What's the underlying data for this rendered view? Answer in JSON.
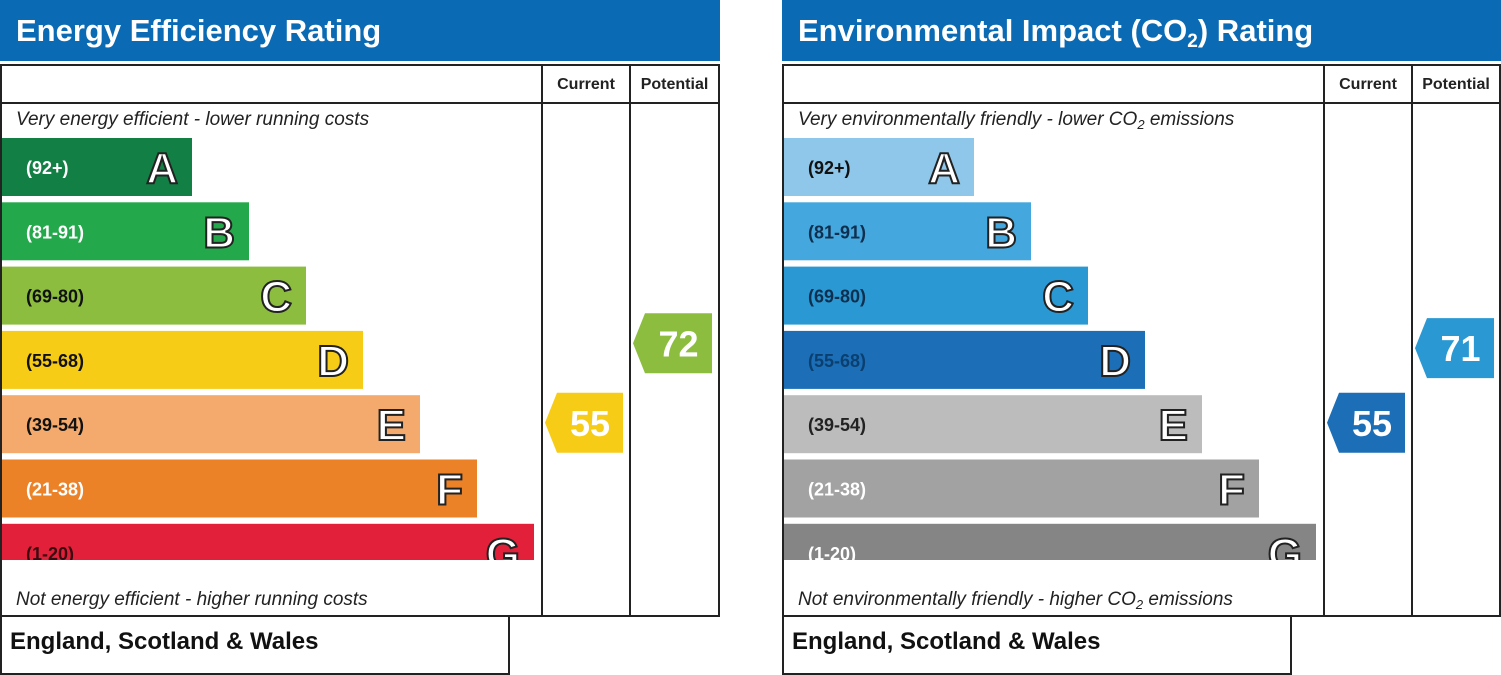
{
  "chart_data": [
    {
      "type": "bar",
      "title": "Energy Efficiency Rating",
      "columns": [
        "Current",
        "Potential"
      ],
      "top_caption": "Very energy efficient - lower running costs",
      "bottom_caption": "Not energy efficient - higher running costs",
      "region": "England, Scotland & Wales",
      "bands": [
        {
          "letter": "A",
          "range": "(92+)",
          "min": 92,
          "max": 100,
          "color": "#127f45"
        },
        {
          "letter": "B",
          "range": "(81-91)",
          "min": 81,
          "max": 91,
          "color": "#23a94b"
        },
        {
          "letter": "C",
          "range": "(69-80)",
          "min": 69,
          "max": 80,
          "color": "#8cbd3f"
        },
        {
          "letter": "D",
          "range": "(55-68)",
          "min": 55,
          "max": 68,
          "color": "#f6cc17"
        },
        {
          "letter": "E",
          "range": "(39-54)",
          "min": 39,
          "max": 54,
          "color": "#f3aa6c"
        },
        {
          "letter": "F",
          "range": "(21-38)",
          "min": 21,
          "max": 38,
          "color": "#ec8228"
        },
        {
          "letter": "G",
          "range": "(1-20)",
          "min": 1,
          "max": 20,
          "color": "#e32039"
        }
      ],
      "current": {
        "value": 55,
        "band": "D",
        "color": "#f6cc17"
      },
      "potential": {
        "value": 72,
        "band": "C",
        "color": "#8cbd3f"
      }
    },
    {
      "type": "bar",
      "title": "Environmental Impact (CO",
      "title_sub": "2",
      "title_end": ") Rating",
      "columns": [
        "Current",
        "Potential"
      ],
      "top_caption": "Very environmentally friendly - lower CO",
      "top_caption_sub": "2",
      "top_caption_end": " emissions",
      "bottom_caption": "Not environmentally friendly - higher CO",
      "bottom_caption_sub": "2",
      "bottom_caption_end": " emissions",
      "region": "England, Scotland & Wales",
      "bands": [
        {
          "letter": "A",
          "range": "(92+)",
          "min": 92,
          "max": 100,
          "color": "#8ec7ea"
        },
        {
          "letter": "B",
          "range": "(81-91)",
          "min": 81,
          "max": 91,
          "color": "#44a7dd"
        },
        {
          "letter": "C",
          "range": "(69-80)",
          "min": 69,
          "max": 80,
          "color": "#2a99d3"
        },
        {
          "letter": "D",
          "range": "(55-68)",
          "min": 55,
          "max": 68,
          "color": "#1c6fb6"
        },
        {
          "letter": "E",
          "range": "(39-54)",
          "min": 39,
          "max": 54,
          "color": "#bcbcbc"
        },
        {
          "letter": "F",
          "range": "(21-38)",
          "min": 21,
          "max": 38,
          "color": "#a2a2a2"
        },
        {
          "letter": "G",
          "range": "(1-20)",
          "min": 1,
          "max": 20,
          "color": "#858585"
        }
      ],
      "current": {
        "value": 55,
        "band": "D",
        "color": "#1c6fb6"
      },
      "potential": {
        "value": 71,
        "band": "C",
        "color": "#2a99d3"
      }
    }
  ]
}
